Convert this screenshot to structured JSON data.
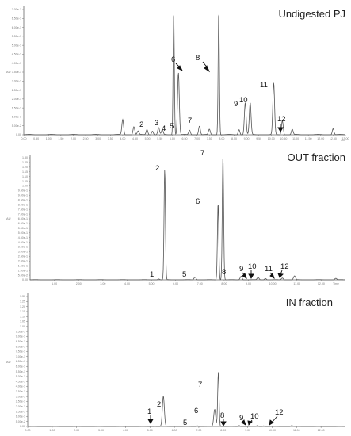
{
  "chart_data": [
    {
      "type": "line",
      "title": "Undigested PJ",
      "x_unit": "min",
      "ylabel": "AU",
      "xlim": [
        0,
        13.0
      ],
      "x_ticks": [
        "0.00",
        "0.50",
        "1.00",
        "1.50",
        "2.00",
        "2.50",
        "3.00",
        "3.50",
        "4.00",
        "4.50",
        "5.00",
        "5.50",
        "6.00",
        "6.50",
        "7.00",
        "7.50",
        "8.00",
        "8.50",
        "9.00",
        "9.50",
        "10.00",
        "10.50",
        "11.00",
        "11.50",
        "12.00",
        "12.50",
        "13.00"
      ],
      "y_ticks": [
        "0.00",
        "5.00e-2",
        "1.00e-1",
        "1.50e-1",
        "2.00e-1",
        "2.50e-1",
        "3.00e-1",
        "3.50e-1",
        "4.00e-1",
        "4.50e-1",
        "5.00e-1",
        "5.50e-1",
        "6.00e-1",
        "6.50e-1",
        "7.00e-1"
      ],
      "peaks": [
        {
          "label": "",
          "x": 4.0,
          "y": 0.085
        },
        {
          "label": "2",
          "x": 4.45,
          "y": 0.045
        },
        {
          "label": "",
          "x": 4.62,
          "y": 0.02
        },
        {
          "label": "3",
          "x": 4.98,
          "y": 0.03
        },
        {
          "label": "4",
          "x": 5.2,
          "y": 0.022
        },
        {
          "label": "",
          "x": 5.45,
          "y": 0.04
        },
        {
          "label": "5",
          "x": 5.6,
          "y": 0.028
        },
        {
          "label": "6",
          "x": 6.06,
          "y": 0.7
        },
        {
          "label": "",
          "x": 6.25,
          "y": 0.35
        },
        {
          "label": "7",
          "x": 6.7,
          "y": 0.025
        },
        {
          "label": "",
          "x": 7.1,
          "y": 0.05
        },
        {
          "label": "",
          "x": 7.5,
          "y": 0.03
        },
        {
          "label": "8",
          "x": 7.88,
          "y": 0.7
        },
        {
          "label": "",
          "x": 8.7,
          "y": 0.03
        },
        {
          "label": "9",
          "x": 8.95,
          "y": 0.18
        },
        {
          "label": "10",
          "x": 9.15,
          "y": 0.18
        },
        {
          "label": "11",
          "x": 10.1,
          "y": 0.29
        },
        {
          "label": "",
          "x": 10.45,
          "y": 0.08
        },
        {
          "label": "12",
          "x": 10.85,
          "y": 0.03
        },
        {
          "label": "",
          "x": 12.5,
          "y": 0.035
        }
      ]
    },
    {
      "type": "line",
      "title": "OUT fraction",
      "x_unit": "Time",
      "ylabel": "AU",
      "xlim": [
        0,
        13.0
      ],
      "x_ticks": [
        "1.00",
        "2.00",
        "3.00",
        "4.00",
        "5.00",
        "6.00",
        "7.00",
        "8.00",
        "9.00",
        "10.00",
        "11.00",
        "12.00"
      ],
      "y_ticks": [
        "0.00",
        "5.00e-2",
        "1.00e-1",
        "1.50e-1",
        "2.00e-1",
        "2.50e-1",
        "3.00e-1",
        "3.50e-1",
        "4.00e-1",
        "4.50e-1",
        "5.00e-1",
        "5.50e-1",
        "6.00e-1",
        "6.50e-1",
        "7.00e-1",
        "7.50e-1",
        "8.00e-1",
        "8.50e-1",
        "9.00e-1",
        "9.50e-1",
        "1.00",
        "1.05",
        "1.10",
        "1.15",
        "1.20",
        "1.25",
        "1.30"
      ],
      "peaks": [
        {
          "label": "1",
          "x": 5.3,
          "y": 0.01
        },
        {
          "label": "2",
          "x": 5.55,
          "y": 1.16
        },
        {
          "label": "5",
          "x": 6.8,
          "y": 0.03
        },
        {
          "label": "6",
          "x": 7.75,
          "y": 0.81
        },
        {
          "label": "7",
          "x": 7.95,
          "y": 1.3
        },
        {
          "label": "8",
          "x": 8.7,
          "y": 0.04
        },
        {
          "label": "9",
          "x": 9.4,
          "y": 0.025
        },
        {
          "label": "10",
          "x": 9.7,
          "y": 0.015
        },
        {
          "label": "11",
          "x": 10.4,
          "y": 0.02
        },
        {
          "label": "12",
          "x": 10.9,
          "y": 0.04
        },
        {
          "label": "",
          "x": 12.6,
          "y": 0.015
        }
      ]
    },
    {
      "type": "line",
      "title": "IN fraction",
      "x_unit": "",
      "ylabel": "AU",
      "xlim": [
        0,
        13.0
      ],
      "x_ticks": [
        "0.00",
        "1.00",
        "2.00",
        "3.00",
        "4.00",
        "5.00",
        "6.00",
        "7.00",
        "8.00",
        "9.00",
        "10.00",
        "11.00",
        "12.00"
      ],
      "y_ticks": [
        "0.00",
        "5.00e-2",
        "1.00e-1",
        "1.50e-1",
        "2.00e-1",
        "2.50e-1",
        "3.00e-1",
        "3.50e-1",
        "4.00e-1",
        "4.50e-1",
        "5.00e-1",
        "5.50e-1",
        "6.00e-1",
        "6.50e-1",
        "7.00e-1",
        "7.50e-1",
        "8.00e-1",
        "8.50e-1",
        "9.00e-1",
        "9.50e-1",
        "1.00",
        "1.05",
        "1.10",
        "1.15",
        "1.20",
        "1.25",
        "1.30"
      ],
      "peaks": [
        {
          "label": "1",
          "x": 5.2,
          "y": 0.005
        },
        {
          "label": "2",
          "x": 5.55,
          "y": 0.3
        },
        {
          "label": "5",
          "x": 6.95,
          "y": 0.008
        },
        {
          "label": "6",
          "x": 7.65,
          "y": 0.17
        },
        {
          "label": "7",
          "x": 7.8,
          "y": 0.54
        },
        {
          "label": "8",
          "x": 8.65,
          "y": 0.01
        },
        {
          "label": "9",
          "x": 9.4,
          "y": 0.008
        },
        {
          "label": "10",
          "x": 9.65,
          "y": 0.008
        },
        {
          "label": "12",
          "x": 10.8,
          "y": 0.008
        }
      ]
    }
  ]
}
